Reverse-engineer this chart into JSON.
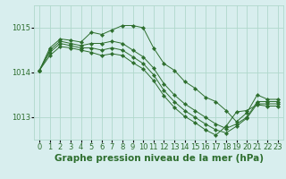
{
  "bg_color": "#d8eeee",
  "grid_color": "#b0d8cc",
  "line_color": "#2d6e2d",
  "marker_color": "#2d6e2d",
  "xlabel": "Graphe pression niveau de la mer (hPa)",
  "xlabel_color": "#2d6e2d",
  "xlabel_fontsize": 7.5,
  "tick_color": "#2d6e2d",
  "tick_fontsize": 6,
  "yticks": [
    1013,
    1014,
    1015
  ],
  "xlim": [
    -0.5,
    23.5
  ],
  "ylim": [
    1012.5,
    1015.5
  ],
  "series": [
    [
      1014.05,
      1014.55,
      1014.75,
      1014.72,
      1014.68,
      1014.9,
      1014.85,
      1014.95,
      1015.05,
      1015.05,
      1015.0,
      1014.55,
      1014.2,
      1014.05,
      1013.8,
      1013.65,
      1013.45,
      1013.35,
      1013.15,
      1012.9,
      1013.1,
      1013.5,
      1013.4,
      1013.4
    ],
    [
      1014.05,
      1014.5,
      1014.7,
      1014.65,
      1014.6,
      1014.65,
      1014.65,
      1014.7,
      1014.65,
      1014.5,
      1014.35,
      1014.1,
      1013.75,
      1013.5,
      1013.3,
      1013.15,
      1013.0,
      1012.85,
      1012.75,
      1012.85,
      1013.0,
      1013.35,
      1013.35,
      1013.35
    ],
    [
      1014.05,
      1014.45,
      1014.65,
      1014.6,
      1014.55,
      1014.55,
      1014.5,
      1014.55,
      1014.5,
      1014.35,
      1014.2,
      1013.95,
      1013.6,
      1013.35,
      1013.15,
      1013.0,
      1012.85,
      1012.72,
      1012.65,
      1012.8,
      1012.98,
      1013.3,
      1013.3,
      1013.3
    ],
    [
      1014.05,
      1014.38,
      1014.58,
      1014.55,
      1014.5,
      1014.45,
      1014.38,
      1014.42,
      1014.38,
      1014.22,
      1014.08,
      1013.82,
      1013.48,
      1013.22,
      1013.02,
      1012.88,
      1012.72,
      1012.6,
      1012.8,
      1013.12,
      1013.15,
      1013.28,
      1013.25,
      1013.25
    ]
  ]
}
